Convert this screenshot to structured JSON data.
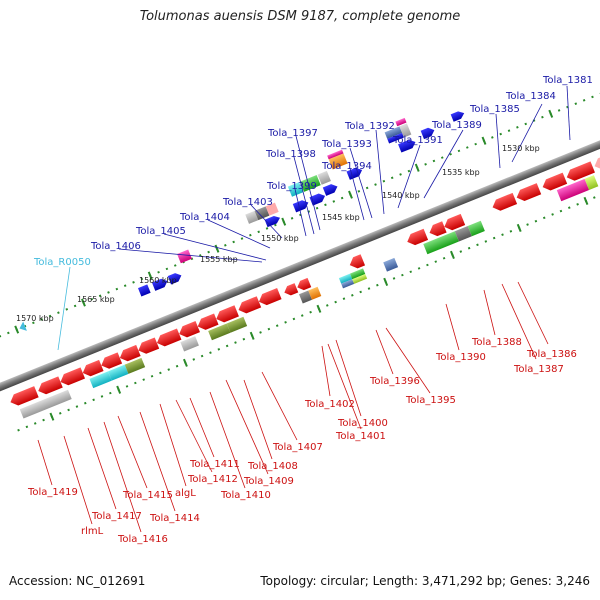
{
  "title": "Tolumonas auensis DSM 9187, complete genome",
  "footer": {
    "accession": "Accession: NC_012691",
    "stats": "Topology: circular; Length: 3,471,292 bp; Genes: 3,246"
  },
  "colors": {
    "backbone": "#888888",
    "forward_label": "#1a1aa6",
    "reverse_label": "#cc1111",
    "rna_label": "#44bbdd",
    "tick": "#2a8a2a"
  },
  "kbp_ticks": [
    "1570 kbp",
    "1565 kbp",
    "1560 kbp",
    "1555 kbp",
    "1550 kbp",
    "1545 kbp",
    "1540 kbp",
    "1535 kbp",
    "1530 kbp"
  ],
  "forward_genes": [
    "Tola_1381",
    "Tola_1384",
    "Tola_1385",
    "Tola_1389",
    "Tola_1391",
    "Tola_1392",
    "Tola_1393",
    "Tola_1394",
    "Tola_1397",
    "Tola_1398",
    "Tola_1399",
    "Tola_1403",
    "Tola_1404",
    "Tola_1405",
    "Tola_1406"
  ],
  "rna_genes": [
    "Tola_R0050"
  ],
  "reverse_genes": [
    "Tola_1386",
    "Tola_1387",
    "Tola_1388",
    "Tola_1390",
    "Tola_1395",
    "Tola_1396",
    "Tola_1400",
    "Tola_1401",
    "Tola_1402",
    "Tola_1407",
    "Tola_1408",
    "Tola_1409",
    "Tola_1410",
    "Tola_1411",
    "Tola_1412",
    "algL",
    "Tola_1414",
    "Tola_1415",
    "Tola_1416",
    "Tola_1417",
    "rlmL",
    "Tola_1419"
  ]
}
